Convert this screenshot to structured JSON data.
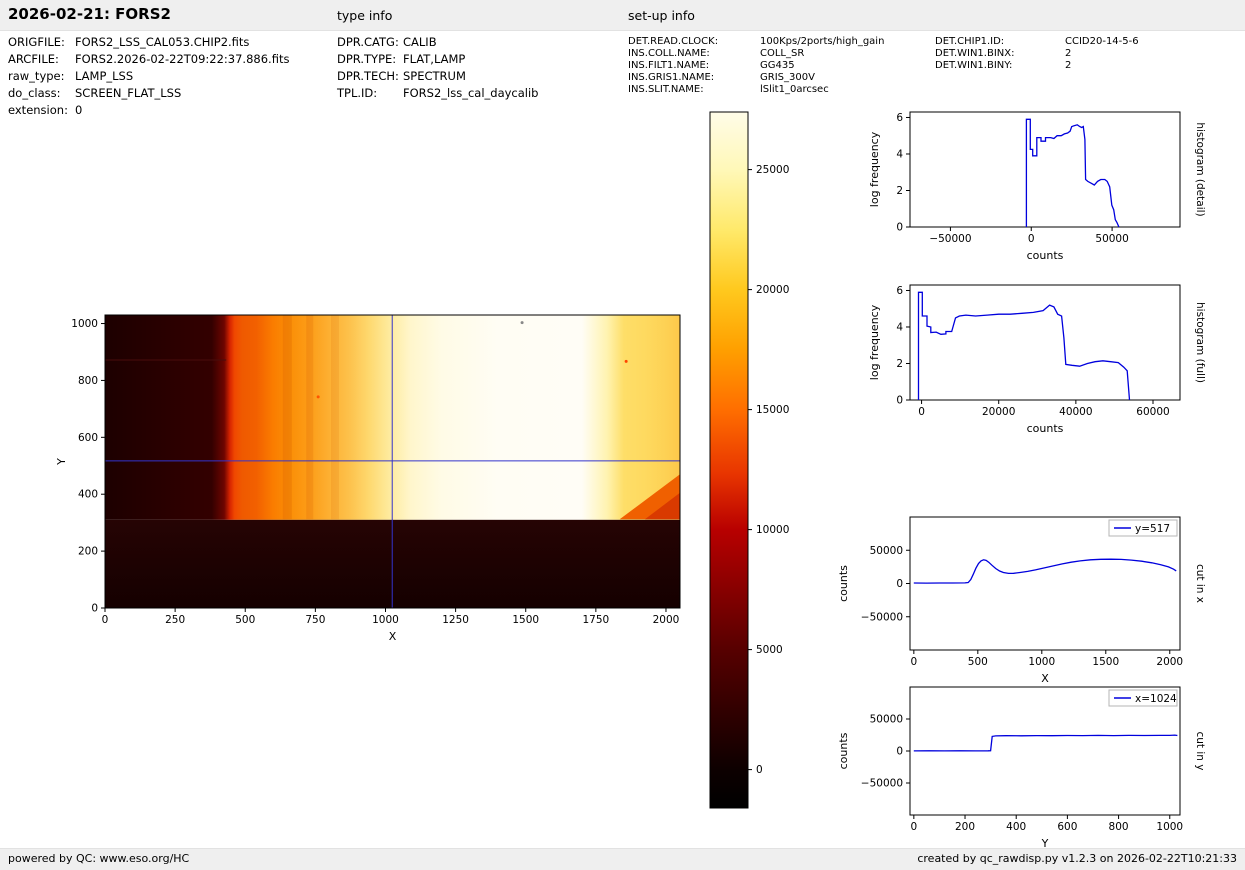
{
  "header": {
    "title": "2026-02-21: FORS2",
    "type_info_label": "type info",
    "setup_info_label": "set-up info"
  },
  "file_info": [
    {
      "label": "ORIGFILE:",
      "value": "FORS2_LSS_CAL053.CHIP2.fits"
    },
    {
      "label": "ARCFILE:",
      "value": "FORS2.2026-02-22T09:22:37.886.fits"
    },
    {
      "label": "raw_type:",
      "value": "LAMP_LSS"
    },
    {
      "label": "do_class:",
      "value": "SCREEN_FLAT_LSS"
    },
    {
      "label": "extension:",
      "value": "0"
    }
  ],
  "type_info": [
    {
      "label": "DPR.CATG:",
      "value": "CALIB"
    },
    {
      "label": "DPR.TYPE:",
      "value": "FLAT,LAMP"
    },
    {
      "label": "DPR.TECH:",
      "value": "SPECTRUM"
    },
    {
      "label": "TPL.ID:",
      "value": "FORS2_lss_cal_daycalib"
    }
  ],
  "setup_info": [
    {
      "label": "DET.READ.CLOCK:",
      "value": "100Kps/2ports/high_gain"
    },
    {
      "label": "INS.COLL.NAME:",
      "value": "COLL_SR"
    },
    {
      "label": "INS.FILT1.NAME:",
      "value": "GG435"
    },
    {
      "label": "INS.GRIS1.NAME:",
      "value": "GRIS_300V"
    },
    {
      "label": "INS.SLIT.NAME:",
      "value": "lSlit1_0arcsec"
    }
  ],
  "chip_info": [
    {
      "label": "DET.CHIP1.ID:",
      "value": "CCID20-14-5-6"
    },
    {
      "label": "DET.WIN1.BINX:",
      "value": "2"
    },
    {
      "label": "DET.WIN1.BINY:",
      "value": "2"
    }
  ],
  "footer": {
    "left": "powered by QC: www.eso.org/HC",
    "right": "created by qc_rawdisp.py v1.2.3 on 2026-02-22T10:21:33"
  },
  "colors": {
    "line": "#0000dd",
    "crosshair": "#3333cc",
    "header_bg": "#efefef",
    "footer_bg": "#efefef"
  },
  "chart_data": [
    {
      "id": "main_image",
      "type": "heatmap",
      "xlabel": "X",
      "ylabel": "Y",
      "ylabel_off": 40,
      "xlim": [
        0,
        2050
      ],
      "ylim": [
        0,
        1030
      ],
      "x_ticks": [
        0,
        250,
        500,
        750,
        1000,
        1250,
        1500,
        1750,
        2000
      ],
      "y_ticks": [
        0,
        200,
        400,
        600,
        800,
        1000
      ],
      "margins": {
        "l": 55,
        "t": 22,
        "r": 20,
        "b": 55
      },
      "image_extent": {
        "x": [
          0,
          2050
        ],
        "y": [
          0,
          1030
        ]
      },
      "illuminated_y_min": 310,
      "crosshair": {
        "x": 1024,
        "y": 517
      },
      "bottom_colors": [
        "#260404",
        "#150000"
      ],
      "bands": [
        {
          "x": 0,
          "color": "#1d0000"
        },
        {
          "x": 380,
          "color": "#330000"
        },
        {
          "x": 425,
          "color": "#6e0500"
        },
        {
          "x": 445,
          "color": "#d62400"
        },
        {
          "x": 462,
          "color": "#f04800"
        },
        {
          "x": 490,
          "color": "#ef5a00"
        },
        {
          "x": 540,
          "color": "#f26000"
        },
        {
          "x": 600,
          "color": "#fa7d00"
        },
        {
          "x": 660,
          "color": "#fb8f07"
        },
        {
          "x": 730,
          "color": "#fc9d18"
        },
        {
          "x": 800,
          "color": "#fdb032"
        },
        {
          "x": 870,
          "color": "#fdc14b"
        },
        {
          "x": 940,
          "color": "#fed86e"
        },
        {
          "x": 1010,
          "color": "#feea9b"
        },
        {
          "x": 1090,
          "color": "#fff6cc"
        },
        {
          "x": 1200,
          "color": "#fffbe6"
        },
        {
          "x": 1400,
          "color": "#fffdf4"
        },
        {
          "x": 1700,
          "color": "#fffdf6"
        },
        {
          "x": 1790,
          "color": "#fff3b0"
        },
        {
          "x": 1850,
          "color": "#fede68"
        },
        {
          "x": 1930,
          "color": "#fed95f"
        },
        {
          "x": 2000,
          "color": "#fdd154"
        },
        {
          "x": 2050,
          "color": "#fdc84a"
        }
      ],
      "overlays": [
        {
          "type": "vline",
          "x": 650,
          "y1": 312,
          "y2": 1030,
          "color": "rgba(200,70,0,0.18)",
          "w": 9
        },
        {
          "type": "vline",
          "x": 730,
          "y1": 312,
          "y2": 1030,
          "color": "rgba(200,70,0,0.15)",
          "w": 7
        },
        {
          "type": "vline",
          "x": 820,
          "y1": 312,
          "y2": 1030,
          "color": "rgba(210,90,0,0.14)",
          "w": 8
        },
        {
          "type": "polygon",
          "pts": [
            [
              1835,
              312
            ],
            [
              2050,
              312
            ],
            [
              2050,
              470
            ]
          ],
          "color": "#f06000"
        },
        {
          "type": "polygon",
          "pts": [
            [
              1925,
              312
            ],
            [
              2050,
              312
            ],
            [
              2050,
              405
            ]
          ],
          "color": "#d93a00"
        },
        {
          "type": "hline",
          "y": 872,
          "x1": 0,
          "x2": 432,
          "color": "#4a0d0d",
          "w": 1
        },
        {
          "type": "dot",
          "x": 760,
          "y": 742,
          "color": "#ff5500"
        },
        {
          "type": "dot",
          "x": 1487,
          "y": 1003,
          "color": "#888888"
        },
        {
          "type": "dot",
          "x": 1858,
          "y": 867,
          "color": "#ff4400"
        }
      ]
    },
    {
      "id": "colorbar",
      "type": "colorbar",
      "range": [
        -1600,
        27400
      ],
      "ticks": [
        0,
        5000,
        10000,
        15000,
        20000,
        25000
      ],
      "margins": {
        "l": 5,
        "t": 12,
        "r": 47,
        "b": 12
      },
      "stops": [
        {
          "offset": 0,
          "color": "#000000"
        },
        {
          "offset": 5.5,
          "color": "#0d0000"
        },
        {
          "offset": 22.8,
          "color": "#570000"
        },
        {
          "offset": 40,
          "color": "#b80000"
        },
        {
          "offset": 48,
          "color": "#e83500"
        },
        {
          "offset": 57.2,
          "color": "#ff6e00"
        },
        {
          "offset": 66,
          "color": "#ffa000"
        },
        {
          "offset": 74.5,
          "color": "#ffc91e"
        },
        {
          "offset": 83,
          "color": "#ffe96a"
        },
        {
          "offset": 91.7,
          "color": "#fff8b8"
        },
        {
          "offset": 100,
          "color": "#fffce8"
        }
      ]
    },
    {
      "id": "hist_detail",
      "type": "line",
      "xlabel": "counts",
      "ylabel": "log frequency",
      "ylabel_off": 32,
      "right_label": "histogram (detail)",
      "xlim": [
        -75000,
        92000
      ],
      "ylim": [
        0,
        6.3
      ],
      "x_ticks": [
        -50000,
        0,
        50000
      ],
      "y_ticks": [
        0,
        2,
        4,
        6
      ],
      "margins": {
        "l": 75,
        "t": 12,
        "r": 25,
        "b": 48
      },
      "series": [
        {
          "name": "histogram detail",
          "points": [
            [
              -3000,
              0
            ],
            [
              -3000,
              5.9
            ],
            [
              -600,
              5.9
            ],
            [
              -600,
              4.25
            ],
            [
              900,
              4.25
            ],
            [
              900,
              3.9
            ],
            [
              3400,
              3.9
            ],
            [
              3400,
              4.9
            ],
            [
              6000,
              4.9
            ],
            [
              6000,
              4.7
            ],
            [
              8800,
              4.7
            ],
            [
              8800,
              4.9
            ],
            [
              12000,
              4.9
            ],
            [
              14000,
              4.85
            ],
            [
              16000,
              5.0
            ],
            [
              18500,
              5.0
            ],
            [
              20500,
              5.1
            ],
            [
              22500,
              5.15
            ],
            [
              24000,
              5.25
            ],
            [
              25000,
              5.5
            ],
            [
              26500,
              5.55
            ],
            [
              28500,
              5.6
            ],
            [
              30000,
              5.5
            ],
            [
              31200,
              5.45
            ],
            [
              32200,
              5.5
            ],
            [
              33200,
              4.8
            ],
            [
              33600,
              2.6
            ],
            [
              35000,
              2.5
            ],
            [
              37000,
              2.4
            ],
            [
              39000,
              2.3
            ],
            [
              41000,
              2.5
            ],
            [
              43000,
              2.6
            ],
            [
              45500,
              2.6
            ],
            [
              47000,
              2.5
            ],
            [
              48500,
              2.2
            ],
            [
              49800,
              1.2
            ],
            [
              51000,
              0.95
            ],
            [
              52000,
              0.4
            ],
            [
              53000,
              0.25
            ],
            [
              54200,
              0
            ]
          ]
        }
      ]
    },
    {
      "id": "hist_full",
      "type": "line",
      "xlabel": "counts",
      "ylabel": "log frequency",
      "ylabel_off": 32,
      "right_label": "histogram (full)",
      "xlim": [
        -3000,
        67000
      ],
      "ylim": [
        0,
        6.3
      ],
      "x_ticks": [
        0,
        20000,
        40000,
        60000
      ],
      "y_ticks": [
        0,
        2,
        4,
        6
      ],
      "margins": {
        "l": 75,
        "t": 12,
        "r": 25,
        "b": 48
      },
      "series": [
        {
          "name": "histogram full",
          "points": [
            [
              -800,
              0
            ],
            [
              -800,
              5.9
            ],
            [
              200,
              5.9
            ],
            [
              200,
              4.6
            ],
            [
              1400,
              4.6
            ],
            [
              1400,
              4.05
            ],
            [
              2400,
              4.0
            ],
            [
              2400,
              3.7
            ],
            [
              3800,
              3.72
            ],
            [
              5000,
              3.6
            ],
            [
              6300,
              3.62
            ],
            [
              6300,
              3.75
            ],
            [
              7800,
              3.75
            ],
            [
              8800,
              4.5
            ],
            [
              9800,
              4.6
            ],
            [
              11500,
              4.65
            ],
            [
              14000,
              4.6
            ],
            [
              17000,
              4.65
            ],
            [
              20000,
              4.7
            ],
            [
              23000,
              4.7
            ],
            [
              26000,
              4.75
            ],
            [
              29000,
              4.8
            ],
            [
              31500,
              4.9
            ],
            [
              33200,
              5.2
            ],
            [
              34300,
              5.1
            ],
            [
              35300,
              4.7
            ],
            [
              36300,
              4.6
            ],
            [
              36900,
              3.4
            ],
            [
              37400,
              1.95
            ],
            [
              39000,
              1.9
            ],
            [
              41000,
              1.85
            ],
            [
              43000,
              2.0
            ],
            [
              45000,
              2.1
            ],
            [
              47000,
              2.15
            ],
            [
              49000,
              2.1
            ],
            [
              51000,
              2.05
            ],
            [
              52400,
              1.8
            ],
            [
              53300,
              1.6
            ],
            [
              53900,
              0
            ]
          ]
        }
      ]
    },
    {
      "id": "cut_x",
      "type": "line",
      "xlabel": "X",
      "ylabel": "counts",
      "ylabel_off": 63,
      "right_label": "cut in x",
      "legend": {
        "label": "y=517"
      },
      "xlim": [
        -30,
        2080
      ],
      "ylim": [
        -100000,
        100000
      ],
      "x_ticks": [
        0,
        500,
        1000,
        1500,
        2000
      ],
      "y_ticks": [
        -50000,
        0,
        50000
      ],
      "margins": {
        "l": 75,
        "t": 12,
        "r": 25,
        "b": 55
      },
      "series": [
        {
          "name": "row cut at y=517",
          "points": [
            [
              0,
              800
            ],
            [
              100,
              600
            ],
            [
              200,
              800
            ],
            [
              300,
              700
            ],
            [
              400,
              900
            ],
            [
              425,
              1500
            ],
            [
              445,
              6000
            ],
            [
              465,
              14000
            ],
            [
              485,
              23000
            ],
            [
              505,
              30000
            ],
            [
              525,
              34000
            ],
            [
              545,
              35600
            ],
            [
              565,
              34800
            ],
            [
              585,
              32000
            ],
            [
              610,
              27500
            ],
            [
              640,
              22500
            ],
            [
              670,
              18800
            ],
            [
              700,
              16500
            ],
            [
              740,
              15200
            ],
            [
              780,
              15400
            ],
            [
              830,
              16500
            ],
            [
              890,
              18200
            ],
            [
              950,
              20500
            ],
            [
              1020,
              23500
            ],
            [
              1090,
              26500
            ],
            [
              1160,
              29500
            ],
            [
              1230,
              32000
            ],
            [
              1300,
              34000
            ],
            [
              1380,
              35600
            ],
            [
              1460,
              36400
            ],
            [
              1540,
              36600
            ],
            [
              1620,
              36200
            ],
            [
              1700,
              35200
            ],
            [
              1780,
              33600
            ],
            [
              1860,
              31200
            ],
            [
              1930,
              28300
            ],
            [
              1990,
              25000
            ],
            [
              2030,
              21500
            ],
            [
              2050,
              19000
            ]
          ]
        }
      ]
    },
    {
      "id": "cut_y",
      "type": "line",
      "xlabel": "Y",
      "ylabel": "counts",
      "ylabel_off": 63,
      "right_label": "cut in y",
      "legend": {
        "label": "x=1024"
      },
      "xlim": [
        -15,
        1040
      ],
      "ylim": [
        -100000,
        100000
      ],
      "x_ticks": [
        0,
        200,
        400,
        600,
        800,
        1000
      ],
      "y_ticks": [
        -50000,
        0,
        50000
      ],
      "margins": {
        "l": 75,
        "t": 12,
        "r": 25,
        "b": 45
      },
      "series": [
        {
          "name": "column cut at x=1024",
          "points": [
            [
              0,
              200
            ],
            [
              60,
              350
            ],
            [
              120,
              150
            ],
            [
              180,
              350
            ],
            [
              240,
              200
            ],
            [
              290,
              300
            ],
            [
              300,
              400
            ],
            [
              306,
              22800
            ],
            [
              320,
              23600
            ],
            [
              360,
              23900
            ],
            [
              420,
              23700
            ],
            [
              480,
              24100
            ],
            [
              540,
              23900
            ],
            [
              600,
              24200
            ],
            [
              660,
              24000
            ],
            [
              720,
              24300
            ],
            [
              780,
              24100
            ],
            [
              840,
              24300
            ],
            [
              900,
              24200
            ],
            [
              960,
              24400
            ],
            [
              1000,
              24300
            ],
            [
              1020,
              24800
            ],
            [
              1030,
              24200
            ]
          ]
        }
      ]
    }
  ]
}
